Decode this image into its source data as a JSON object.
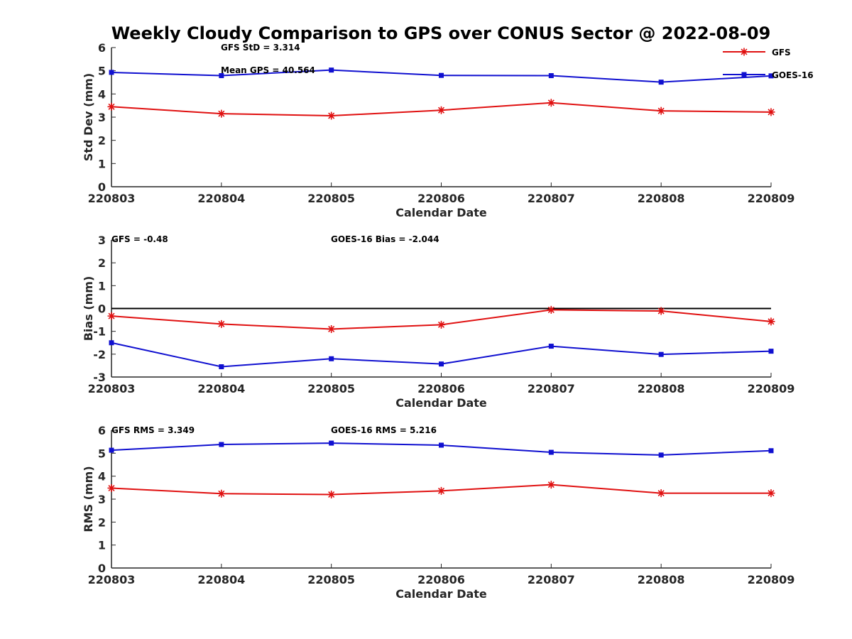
{
  "title": "Weekly Cloudy Comparison to GPS over CONUS Sector @ 2022-08-09",
  "colors": {
    "gfs": "#e01010",
    "goes": "#1010d0",
    "axis": "#262626"
  },
  "legend": {
    "placement": "top-right",
    "entries": [
      "GFS",
      "GOES-16"
    ]
  },
  "chart_data": [
    {
      "type": "line",
      "categories": [
        "220803",
        "220804",
        "220805",
        "220806",
        "220807",
        "220808",
        "220809"
      ],
      "xlabel": "Calendar Date",
      "ylabel": "Std Dev (mm)",
      "ylim": [
        0,
        6
      ],
      "yticks": [
        0,
        1,
        2,
        3,
        4,
        5,
        6
      ],
      "series": [
        {
          "name": "GFS",
          "marker": "star",
          "values": [
            3.45,
            3.15,
            3.06,
            3.3,
            3.62,
            3.27,
            3.22
          ]
        },
        {
          "name": "GOES-16",
          "marker": "square",
          "values": [
            4.93,
            4.79,
            5.03,
            4.8,
            4.79,
            4.51,
            4.78
          ]
        }
      ],
      "annotations": [
        "GFS StD = 3.314",
        "Mean GPS = 40.564"
      ]
    },
    {
      "type": "line",
      "categories": [
        "220803",
        "220804",
        "220805",
        "220806",
        "220807",
        "220808",
        "220809"
      ],
      "xlabel": "Calendar Date",
      "ylabel": "Bias (mm)",
      "ylim": [
        -3,
        3
      ],
      "yticks": [
        -3,
        -2,
        -1,
        0,
        1,
        2,
        3
      ],
      "zero_line": true,
      "series": [
        {
          "name": "GFS",
          "marker": "star",
          "values": [
            -0.33,
            -0.68,
            -0.9,
            -0.71,
            -0.06,
            -0.11,
            -0.57
          ]
        },
        {
          "name": "GOES-16",
          "marker": "square",
          "values": [
            -1.5,
            -2.55,
            -2.2,
            -2.43,
            -1.65,
            -2.01,
            -1.87
          ]
        }
      ],
      "annotations": [
        "GFS = -0.48",
        "GOES-16 Bias  = -2.044"
      ]
    },
    {
      "type": "line",
      "categories": [
        "220803",
        "220804",
        "220805",
        "220806",
        "220807",
        "220808",
        "220809"
      ],
      "xlabel": "Calendar Date",
      "ylabel": "RMS (mm)",
      "ylim": [
        0,
        6
      ],
      "yticks": [
        0,
        1,
        2,
        3,
        4,
        5,
        6
      ],
      "series": [
        {
          "name": "GFS",
          "marker": "star",
          "values": [
            3.48,
            3.24,
            3.2,
            3.36,
            3.63,
            3.26,
            3.26
          ]
        },
        {
          "name": "GOES-16",
          "marker": "square",
          "values": [
            5.13,
            5.38,
            5.44,
            5.35,
            5.04,
            4.92,
            5.11
          ]
        }
      ],
      "annotations": [
        "GFS RMS = 3.349",
        "GOES-16 RMS = 5.216"
      ]
    }
  ]
}
